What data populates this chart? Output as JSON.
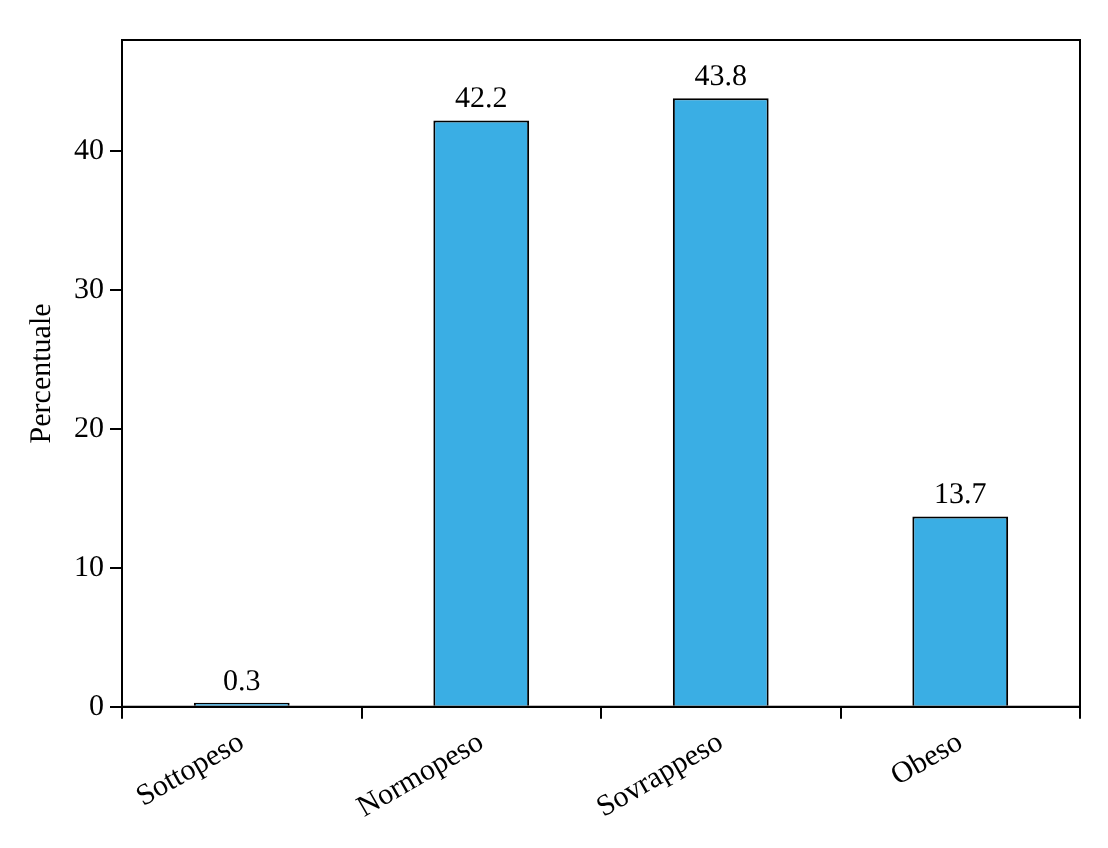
{
  "chart_data": {
    "type": "bar",
    "ylabel": "Percentuale",
    "categories": [
      "Sottopeso",
      "Normopeso",
      "Sovrappeso",
      "Obeso"
    ],
    "values": [
      0.3,
      42.2,
      43.8,
      13.7
    ],
    "color": "#3aaee4",
    "ylim": [
      0,
      48
    ],
    "yticks": [
      0,
      10,
      20,
      30,
      40
    ],
    "grid": false,
    "data_labels": true
  }
}
